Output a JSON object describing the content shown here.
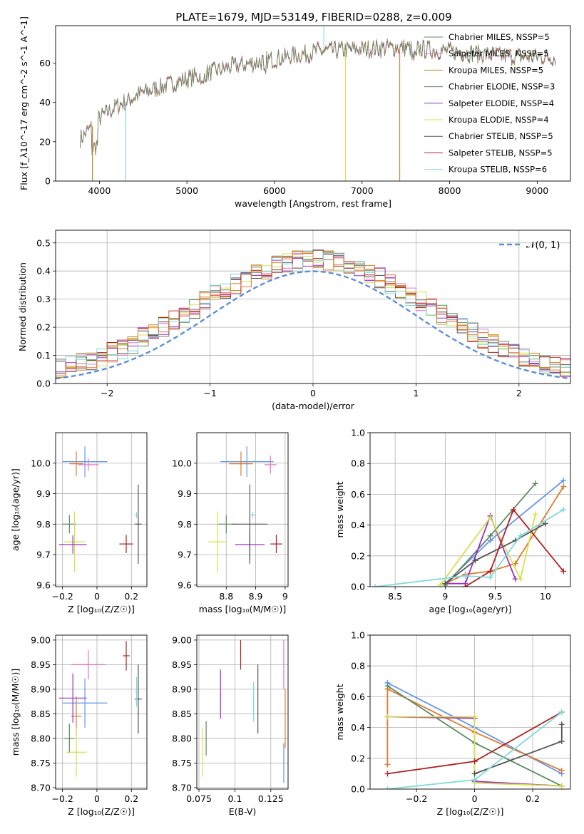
{
  "figure": {
    "title": "PLATE=1679, MJD=53149, FIBERID=0288, z=0.009"
  },
  "colors": [
    "#5b8a5f",
    "#e377c2",
    "#c7841a",
    "#5b8a5f",
    "#9b30c0",
    "#d8e04b",
    "#555555",
    "#b22222",
    "#7fd9d9",
    "#6495ed",
    "#e07a2e"
  ],
  "chart_data": [
    {
      "type": "line",
      "name": "spectrum",
      "xlabel": "wavelength [Angstrom, rest frame]",
      "ylabel": "Flux [f_λ10^-17 erg cm^-2 s^-1 A^-1]",
      "xlim": [
        3500,
        9380
      ],
      "ylim": [
        0,
        79
      ],
      "xticks": [
        4000,
        5000,
        6000,
        7000,
        8000,
        9000
      ],
      "yticks": [
        0,
        20,
        40,
        60
      ],
      "legend_position": "top-right",
      "series": [
        {
          "name": "Chabrier MILES, N_SSP=5",
          "color": "#5b8a5f"
        },
        {
          "name": "Salpeter MILES, N_SSP=5",
          "color": "#e377c2"
        },
        {
          "name": "Kroupa MILES, N_SSP=5",
          "color": "#c7841a"
        },
        {
          "name": "Chabrier ELODIE, N_SSP=3",
          "color": "#5b8a5f"
        },
        {
          "name": "Salpeter ELODIE, N_SSP=4",
          "color": "#9b30c0"
        },
        {
          "name": "Kroupa ELODIE, N_SSP=4",
          "color": "#d8e04b"
        },
        {
          "name": "Chabrier STELIB, N_SSP=5",
          "color": "#555555"
        },
        {
          "name": "Salpeter STELIB, N_SSP=5",
          "color": "#b22222"
        },
        {
          "name": "Kroupa STELIB, N_SSP=6",
          "color": "#7fd9d9"
        }
      ],
      "continuum": [
        [
          3800,
          22
        ],
        [
          4000,
          32
        ],
        [
          4200,
          38
        ],
        [
          4500,
          45
        ],
        [
          5000,
          52
        ],
        [
          5500,
          58
        ],
        [
          6000,
          62
        ],
        [
          6500,
          66
        ],
        [
          7000,
          67
        ],
        [
          7400,
          68
        ],
        [
          8000,
          66
        ],
        [
          8500,
          64
        ],
        [
          9000,
          63
        ],
        [
          9200,
          63
        ]
      ],
      "drops": [
        {
          "x": 3920,
          "color": "#c7841a"
        },
        {
          "x": 4300,
          "color": "#7fd9d9"
        },
        {
          "x": 6810,
          "color": "#d8e04b"
        },
        {
          "x": 7430,
          "color": "#e07a2e"
        }
      ]
    },
    {
      "type": "histogram",
      "name": "residuals",
      "xlabel": "(data-model)/error",
      "ylabel": "Normed distribution",
      "xlim": [
        -2.5,
        2.5
      ],
      "ylim": [
        0,
        0.545
      ],
      "xticks": [
        -2,
        -1,
        0,
        1,
        2
      ],
      "yticks": [
        0.0,
        0.1,
        0.2,
        0.3,
        0.4,
        0.5
      ],
      "grid": true,
      "legend_position": "top-right",
      "reference_curve": {
        "name": "𝒩(0, 1)",
        "color": "#5b8fd9"
      }
    },
    {
      "type": "scatter",
      "name": "age-vs-Z",
      "xlabel": "Z [log10(Z/Z☉)]",
      "ylabel": "age  [log10(age/yr)]",
      "xlim": [
        -0.24,
        0.29
      ],
      "ylim": [
        9.595,
        10.1
      ],
      "xticks": [
        -0.2,
        0.0,
        0.2
      ],
      "yticks": [
        9.6,
        9.7,
        9.8,
        9.9,
        10.0
      ],
      "grid": true,
      "points": [
        {
          "x": -0.07,
          "y": 10.005,
          "xerr": 0.13,
          "yerr": 0.05,
          "color": "#6495ed"
        },
        {
          "x": -0.12,
          "y": 9.998,
          "xerr": 0.04,
          "yerr": 0.04,
          "color": "#e07a2e"
        },
        {
          "x": -0.05,
          "y": 9.995,
          "xerr": 0.06,
          "yerr": 0.02,
          "color": "#e377c2"
        },
        {
          "x": -0.16,
          "y": 9.8,
          "xerr": 0.04,
          "yerr": 0.03,
          "color": "#5b8a5f"
        },
        {
          "x": -0.13,
          "y": 9.742,
          "xerr": 0.06,
          "yerr": 0.1,
          "color": "#d8e04b"
        },
        {
          "x": -0.14,
          "y": 9.733,
          "xerr": 0.08,
          "yerr": 0.03,
          "color": "#9b30c0"
        },
        {
          "x": 0.17,
          "y": 9.735,
          "xerr": 0.04,
          "yerr": 0.03,
          "color": "#b22222"
        },
        {
          "x": 0.24,
          "y": 9.8,
          "xerr": 0.02,
          "yerr": 0.13,
          "color": "#555555"
        },
        {
          "x": 0.23,
          "y": 9.83,
          "xerr": 0.01,
          "yerr": 0.01,
          "color": "#7fd9d9"
        }
      ]
    },
    {
      "type": "scatter",
      "name": "age-vs-mass",
      "xlabel": "mass [log10(M/M☉)]",
      "ylabel": "",
      "xlim": [
        8.7,
        9.01
      ],
      "ylim": [
        9.595,
        10.1
      ],
      "xticks": [
        8.8,
        8.9,
        9.0
      ],
      "yticks": [
        9.6,
        9.7,
        9.8,
        9.9,
        10.0
      ],
      "grid": true,
      "points": [
        {
          "x": 8.87,
          "y": 10.005,
          "xerr": 0.09,
          "yerr": 0.05,
          "color": "#6495ed"
        },
        {
          "x": 8.85,
          "y": 9.998,
          "xerr": 0.04,
          "yerr": 0.04,
          "color": "#e07a2e"
        },
        {
          "x": 8.95,
          "y": 9.995,
          "xerr": 0.02,
          "yerr": 0.03,
          "color": "#e377c2"
        },
        {
          "x": 8.8,
          "y": 9.8,
          "xerr": 0.03,
          "yerr": 0.03,
          "color": "#5b8a5f"
        },
        {
          "x": 8.77,
          "y": 9.742,
          "xerr": 0.03,
          "yerr": 0.1,
          "color": "#d8e04b"
        },
        {
          "x": 8.88,
          "y": 9.733,
          "xerr": 0.05,
          "yerr": 0.05,
          "color": "#9b30c0"
        },
        {
          "x": 8.97,
          "y": 9.735,
          "xerr": 0.02,
          "yerr": 0.03,
          "color": "#b22222"
        },
        {
          "x": 8.88,
          "y": 9.8,
          "xerr": 0.06,
          "yerr": 0.13,
          "color": "#555555"
        },
        {
          "x": 8.89,
          "y": 9.83,
          "xerr": 0.01,
          "yerr": 0.01,
          "color": "#7fd9d9"
        }
      ]
    },
    {
      "type": "line",
      "name": "mass-weight-vs-age",
      "xlabel": "age  [log10(age/yr)]",
      "ylabel": "mass weight",
      "xlim": [
        8.25,
        10.25
      ],
      "ylim": [
        0,
        1
      ],
      "xticks": [
        8.5,
        9.0,
        9.5,
        10.0
      ],
      "yticks": [
        0.0,
        0.2,
        0.4,
        0.6,
        0.8,
        1.0
      ],
      "grid": true,
      "series": [
        {
          "color": "#6495ed",
          "x": [
            9.0,
            9.45,
            10.18
          ],
          "y": [
            0.02,
            0.3,
            0.69
          ]
        },
        {
          "color": "#e07a2e",
          "x": [
            9.0,
            9.2,
            9.45,
            9.7,
            10.18
          ],
          "y": [
            0.02,
            0.08,
            0.1,
            0.15,
            0.65
          ]
        },
        {
          "color": "#5b8a5f",
          "x": [
            9.0,
            9.45,
            9.9
          ],
          "y": [
            0.01,
            0.33,
            0.67
          ]
        },
        {
          "color": "#9b30c0",
          "x": [
            9.0,
            9.2,
            9.45,
            9.7
          ],
          "y": [
            0.02,
            0.02,
            0.46,
            0.05
          ]
        },
        {
          "color": "#d8e04b",
          "x": [
            8.95,
            9.45,
            9.75,
            9.9
          ],
          "y": [
            0.01,
            0.45,
            0.05,
            0.47
          ]
        },
        {
          "color": "#555555",
          "x": [
            9.0,
            9.3,
            9.7,
            10.0
          ],
          "y": [
            0.02,
            0.17,
            0.3,
            0.41
          ]
        },
        {
          "color": "#b22222",
          "x": [
            9.2,
            9.45,
            9.68,
            10.18
          ],
          "y": [
            0.0,
            0.1,
            0.5,
            0.1
          ]
        },
        {
          "color": "#7fd9d9",
          "x": [
            8.3,
            9.2,
            9.45,
            9.75,
            10.18
          ],
          "y": [
            0.0,
            0.07,
            0.06,
            0.33,
            0.5
          ]
        }
      ]
    },
    {
      "type": "scatter",
      "name": "mass-vs-Z",
      "xlabel": "Z [log10(Z/Z☉)]",
      "ylabel": "mass [log10(M/M☉)]",
      "xlim": [
        -0.24,
        0.29
      ],
      "ylim": [
        8.697,
        9.01
      ],
      "xticks": [
        -0.2,
        0.0,
        0.2
      ],
      "yticks": [
        8.7,
        8.75,
        8.8,
        8.85,
        8.9,
        8.95,
        9.0
      ],
      "grid": true,
      "points": [
        {
          "x": -0.07,
          "y": 8.872,
          "xerr": 0.13,
          "yerr": 0.05,
          "color": "#6495ed"
        },
        {
          "x": -0.12,
          "y": 8.845,
          "xerr": 0.03,
          "yerr": 0.04,
          "color": "#e07a2e"
        },
        {
          "x": -0.05,
          "y": 8.95,
          "xerr": 0.1,
          "yerr": 0.03,
          "color": "#e377c2"
        },
        {
          "x": -0.16,
          "y": 8.8,
          "xerr": 0.03,
          "yerr": 0.03,
          "color": "#5b8a5f"
        },
        {
          "x": -0.12,
          "y": 8.772,
          "xerr": 0.06,
          "yerr": 0.05,
          "color": "#d8e04b"
        },
        {
          "x": -0.14,
          "y": 8.882,
          "xerr": 0.08,
          "yerr": 0.05,
          "color": "#9b30c0"
        },
        {
          "x": 0.17,
          "y": 8.968,
          "xerr": 0.02,
          "yerr": 0.03,
          "color": "#b22222"
        },
        {
          "x": 0.24,
          "y": 8.88,
          "xerr": 0.02,
          "yerr": 0.07,
          "color": "#555555"
        },
        {
          "x": 0.23,
          "y": 8.895,
          "xerr": 0.01,
          "yerr": 0.03,
          "color": "#7fd9d9"
        }
      ]
    },
    {
      "type": "scatter",
      "name": "mass-vs-EBV",
      "xlabel": "E(B-V)",
      "ylabel": "",
      "xlim": [
        0.0735,
        0.137
      ],
      "ylim": [
        8.697,
        9.01
      ],
      "xticks": [
        0.075,
        0.1,
        0.125
      ],
      "yticks": [
        8.7,
        8.75,
        8.8,
        8.85,
        8.9,
        8.95,
        9.0
      ],
      "grid": true,
      "points": [
        {
          "x": 0.0775,
          "y": 8.772,
          "yerr": 0.05,
          "color": "#d8e04b"
        },
        {
          "x": 0.08,
          "y": 8.8,
          "yerr": 0.035,
          "color": "#5b8a5f"
        },
        {
          "x": 0.09,
          "y": 8.89,
          "yerr": 0.05,
          "color": "#9b30c0"
        },
        {
          "x": 0.104,
          "y": 8.97,
          "yerr": 0.03,
          "color": "#b22222"
        },
        {
          "x": 0.113,
          "y": 8.875,
          "yerr": 0.04,
          "color": "#7fd9d9"
        },
        {
          "x": 0.116,
          "y": 8.88,
          "yerr": 0.07,
          "color": "#555555"
        },
        {
          "x": 0.134,
          "y": 8.95,
          "yerr": 0.05,
          "color": "#e377c2"
        },
        {
          "x": 0.135,
          "y": 8.84,
          "yerr": 0.06,
          "color": "#e07a2e"
        },
        {
          "x": 0.134,
          "y": 8.75,
          "yerr": 0.04,
          "color": "#6495ed"
        }
      ]
    },
    {
      "type": "line",
      "name": "mass-weight-vs-Z",
      "xlabel": "Z [log10(Z/Z☉)]",
      "ylabel": "mass weight",
      "xlim": [
        -0.36,
        0.33
      ],
      "ylim": [
        0,
        1
      ],
      "xticks": [
        -0.2,
        0.0,
        0.2
      ],
      "yticks": [
        0.0,
        0.2,
        0.4,
        0.6,
        0.8,
        1.0
      ],
      "grid": true,
      "series": [
        {
          "color": "#6495ed",
          "x": [
            -0.3,
            0.0,
            0.3
          ],
          "y": [
            0.69,
            0.4,
            0.1
          ]
        },
        {
          "color": "#e07a2e",
          "x": [
            -0.3,
            -0.3,
            0.0,
            0.3
          ],
          "y": [
            0.16,
            0.65,
            0.37,
            0.12
          ]
        },
        {
          "color": "#5b8a5f",
          "x": [
            -0.3,
            0.0,
            0.3
          ],
          "y": [
            0.67,
            0.3,
            0.02
          ]
        },
        {
          "color": "#9b30c0",
          "x": [
            -0.3,
            0.0,
            0.0,
            0.3
          ],
          "y": [
            0.47,
            0.46,
            0.05,
            0.02
          ]
        },
        {
          "color": "#d8e04b",
          "x": [
            -0.3,
            0.0,
            0.0,
            0.3
          ],
          "y": [
            0.47,
            0.47,
            0.04,
            0.02
          ]
        },
        {
          "color": "#555555",
          "x": [
            0.0,
            0.3,
            0.3
          ],
          "y": [
            0.1,
            0.31,
            0.42
          ]
        },
        {
          "color": "#b22222",
          "x": [
            -0.3,
            0.0,
            0.3
          ],
          "y": [
            0.1,
            0.18,
            0.5
          ]
        },
        {
          "color": "#7fd9d9",
          "x": [
            -0.3,
            0.0,
            0.3
          ],
          "y": [
            0.0,
            0.06,
            0.5
          ]
        }
      ]
    }
  ]
}
